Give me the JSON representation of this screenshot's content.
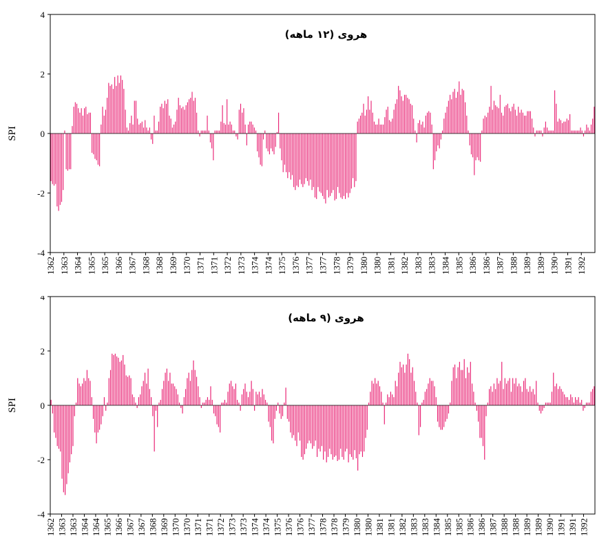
{
  "bar_color": "#E8196E",
  "chart_data": [
    {
      "type": "bar",
      "title": "هروی (۱۲ ماهه)",
      "ylabel": "SPI",
      "ylim": [
        -4,
        4
      ],
      "yticks": [
        -4,
        -2,
        0,
        2,
        4
      ],
      "xtick_labels": [
        "1362",
        "1363",
        "1364",
        "1365",
        "1365",
        "1366",
        "1367",
        "1368",
        "1368",
        "1369",
        "1370",
        "1371",
        "1371",
        "1372",
        "1373",
        "1374",
        "1374",
        "1375",
        "1376",
        "1377",
        "1377",
        "1378",
        "1379",
        "1380",
        "1380",
        "1381",
        "1382",
        "1383",
        "1383",
        "1384",
        "1385",
        "1386",
        "1386",
        "1387",
        "1388",
        "1389",
        "1389",
        "1390",
        "1391",
        "1392"
      ],
      "values": [
        -1.6,
        -1.7,
        -1.75,
        -1.7,
        -2.45,
        -2.6,
        -2.4,
        -2.3,
        -1.9,
        0.1,
        -1.2,
        -1.25,
        -1.2,
        -1.2,
        0.25,
        0.9,
        1.05,
        1.0,
        0.85,
        0.7,
        0.85,
        0.6,
        0.85,
        0.9,
        0.65,
        0.7,
        0.7,
        -0.65,
        -0.7,
        -0.85,
        -0.9,
        -1.05,
        -1.1,
        0.3,
        0.9,
        0.6,
        0.8,
        1.2,
        1.7,
        1.6,
        1.65,
        1.5,
        1.9,
        1.6,
        1.95,
        1.7,
        1.95,
        1.8,
        1.5,
        0.8,
        0.2,
        0.1,
        0.35,
        0.6,
        0.3,
        1.1,
        1.1,
        0.5,
        0.3,
        0.35,
        0.4,
        0.2,
        0.45,
        0.2,
        0.1,
        0.2,
        -0.2,
        -0.35,
        0.6,
        0.1,
        0.1,
        0.4,
        0.9,
        1.0,
        0.85,
        1.1,
        1.0,
        1.15,
        0.6,
        0.5,
        0.2,
        0.3,
        0.4,
        0.8,
        1.2,
        0.95,
        0.85,
        0.9,
        0.8,
        0.95,
        1.05,
        1.15,
        1.2,
        1.4,
        1.1,
        1.2,
        0.7,
        0.1,
        -0.1,
        0.1,
        0.1,
        0.1,
        0.1,
        0.6,
        0.1,
        -0.3,
        -0.5,
        -0.9,
        0.1,
        0.1,
        0.1,
        0.1,
        0.4,
        0.95,
        0.35,
        0.3,
        1.15,
        0.3,
        0.4,
        0.3,
        0.1,
        0.1,
        -0.1,
        -0.2,
        0.8,
        1.0,
        0.7,
        0.85,
        0.3,
        -0.4,
        0.3,
        0.4,
        0.4,
        0.3,
        0.2,
        0.1,
        -0.6,
        -0.8,
        -1.05,
        -1.1,
        -0.2,
        0.1,
        -0.5,
        -0.6,
        -0.7,
        -0.5,
        -0.6,
        -0.7,
        -0.45,
        0.05,
        0.7,
        -0.5,
        -0.9,
        -1.3,
        -1.05,
        -1.3,
        -1.5,
        -1.3,
        -1.55,
        -1.4,
        -1.8,
        -1.9,
        -1.75,
        -1.8,
        -1.55,
        -1.7,
        -1.8,
        -1.7,
        -1.5,
        -1.6,
        -1.75,
        -1.55,
        -1.9,
        -1.8,
        -2.15,
        -2.2,
        -1.8,
        -1.95,
        -2.0,
        -2.1,
        -2.2,
        -2.35,
        -1.9,
        -2.15,
        -2.1,
        -2.0,
        -1.9,
        -2.25,
        -2.2,
        -1.8,
        -2.0,
        -2.15,
        -2.2,
        -2.1,
        -2.2,
        -2.0,
        -2.15,
        -2.0,
        -1.85,
        -1.5,
        -1.8,
        -1.6,
        0.4,
        0.5,
        0.6,
        0.7,
        1.0,
        0.6,
        0.8,
        1.25,
        0.8,
        1.1,
        0.7,
        0.4,
        0.3,
        0.3,
        0.5,
        0.3,
        0.3,
        0.3,
        0.55,
        0.8,
        0.9,
        0.45,
        0.4,
        0.5,
        0.8,
        1.0,
        1.15,
        1.6,
        1.45,
        1.25,
        1.1,
        1.3,
        1.3,
        1.2,
        1.15,
        1.0,
        0.95,
        0.5,
        0.1,
        -0.3,
        0.35,
        0.45,
        0.3,
        0.4,
        0.2,
        0.6,
        0.7,
        0.75,
        0.7,
        0.3,
        -1.2,
        -0.9,
        -0.6,
        -0.4,
        -0.5,
        -0.2,
        0.1,
        0.5,
        0.7,
        0.9,
        1.1,
        1.3,
        1.15,
        1.4,
        1.5,
        1.2,
        1.4,
        1.75,
        1.3,
        1.5,
        1.45,
        1.05,
        0.6,
        0.1,
        -0.4,
        -0.7,
        -0.8,
        -1.4,
        -0.9,
        -0.8,
        -0.9,
        -0.95,
        0.1,
        0.5,
        0.6,
        0.55,
        0.7,
        0.9,
        1.6,
        0.8,
        1.1,
        0.95,
        0.9,
        0.85,
        1.3,
        0.7,
        0.6,
        0.9,
        0.95,
        1.0,
        0.85,
        0.75,
        0.9,
        1.0,
        0.8,
        0.6,
        0.9,
        0.7,
        0.8,
        0.7,
        0.6,
        0.6,
        0.75,
        0.75,
        0.75,
        0.5,
        0.2,
        -0.1,
        0.1,
        0.1,
        0.1,
        0.1,
        -0.1,
        0.2,
        0.4,
        0.2,
        0.1,
        0.1,
        0.1,
        0.1,
        1.45,
        1.0,
        0.4,
        0.5,
        0.45,
        0.35,
        0.4,
        0.4,
        0.5,
        0.45,
        0.65,
        0.1,
        0.1,
        0.1,
        0.1,
        0.1,
        0.1,
        0.2,
        0.1,
        -0.1,
        0.1,
        0.3,
        0.2,
        0.1,
        0.3,
        0.5,
        0.9
      ]
    },
    {
      "type": "bar",
      "title": "هروی (۹ ماهه)",
      "ylabel": "SPI",
      "ylim": [
        -4,
        4
      ],
      "yticks": [
        -4,
        -2,
        0,
        2,
        4
      ],
      "xtick_labels": [
        "1362",
        "1363",
        "1363",
        "1364",
        "1364",
        "1365",
        "1366",
        "1367",
        "1367",
        "1368",
        "1369",
        "1370",
        "1370",
        "1371",
        "1371",
        "1372",
        "1373",
        "1373",
        "1374",
        "1374",
        "1375",
        "1376",
        "1376",
        "1377",
        "1378",
        "1378",
        "1379",
        "1380",
        "1380",
        "1381",
        "1381",
        "1382",
        "1383",
        "1383",
        "1384",
        "1385",
        "1385",
        "1386",
        "1386",
        "1387",
        "1388",
        "1388",
        "1389",
        "1389",
        "1390",
        "1391",
        "1391",
        "1392"
      ],
      "values": [
        0.2,
        -0.3,
        -1.0,
        -1.2,
        -1.5,
        -1.6,
        -1.7,
        -2.7,
        -3.2,
        -3.3,
        -2.9,
        -2.5,
        -2.1,
        -1.8,
        -1.5,
        -0.4,
        0.1,
        1.0,
        0.8,
        0.7,
        0.8,
        1.0,
        0.9,
        1.3,
        1.0,
        0.9,
        0.3,
        -0.5,
        -1.0,
        -1.4,
        -1.0,
        -0.9,
        -0.7,
        -0.4,
        0.3,
        -0.2,
        0.1,
        1.0,
        1.3,
        1.9,
        1.85,
        1.9,
        1.8,
        1.75,
        1.6,
        1.65,
        1.85,
        1.5,
        1.1,
        1.05,
        1.1,
        1.0,
        0.4,
        0.3,
        0.1,
        -0.1,
        0.3,
        0.4,
        0.7,
        0.9,
        1.2,
        0.8,
        1.35,
        0.6,
        0.3,
        -0.4,
        -1.7,
        -0.2,
        -0.8,
        0.1,
        0.2,
        0.6,
        0.9,
        1.2,
        1.35,
        0.9,
        1.2,
        0.8,
        0.8,
        0.7,
        0.6,
        0.4,
        0.1,
        -0.1,
        -0.3,
        0.3,
        0.6,
        1.0,
        1.2,
        0.9,
        1.3,
        1.65,
        1.3,
        1.05,
        0.7,
        0.3,
        -0.1,
        0.1,
        0.1,
        0.2,
        0.3,
        0.2,
        0.7,
        0.2,
        -0.3,
        -0.4,
        -0.7,
        -0.8,
        -1.0,
        0.1,
        0.1,
        0.2,
        0.1,
        0.5,
        0.8,
        0.9,
        0.7,
        0.6,
        0.8,
        0.2,
        0.1,
        -0.2,
        0.4,
        0.6,
        0.8,
        0.5,
        0.3,
        0.5,
        0.9,
        0.6,
        -0.2,
        0.5,
        0.4,
        0.5,
        0.3,
        0.6,
        0.4,
        0.2,
        0.1,
        -0.6,
        -0.8,
        -1.3,
        -1.4,
        -0.5,
        -0.2,
        0.1,
        -0.3,
        -0.5,
        -0.4,
        0.1,
        0.65,
        -0.5,
        -0.6,
        -1.0,
        -1.2,
        -1.1,
        -1.3,
        -1.5,
        -1.0,
        -1.3,
        -1.9,
        -2.0,
        -1.8,
        -1.6,
        -1.4,
        -1.3,
        -1.4,
        -1.6,
        -1.5,
        -1.3,
        -1.9,
        -1.6,
        -1.7,
        -1.5,
        -2.0,
        -1.7,
        -2.1,
        -1.9,
        -1.6,
        -1.8,
        -2.0,
        -1.9,
        -1.85,
        -2.05,
        -2.0,
        -1.6,
        -1.9,
        -2.0,
        -1.7,
        -1.6,
        -2.1,
        -1.8,
        -1.9,
        -2.0,
        -1.65,
        -1.95,
        -2.4,
        -1.8,
        -1.7,
        -1.9,
        -1.7,
        -1.2,
        -0.9,
        0.1,
        0.5,
        0.9,
        0.8,
        1.0,
        0.8,
        0.9,
        0.7,
        0.5,
        0.1,
        -0.7,
        0.1,
        0.4,
        0.3,
        0.5,
        0.4,
        0.3,
        0.9,
        0.7,
        1.2,
        1.6,
        1.4,
        1.5,
        1.2,
        1.5,
        1.9,
        1.7,
        1.2,
        1.4,
        0.9,
        0.5,
        0.1,
        -1.1,
        -0.8,
        0.1,
        0.2,
        0.5,
        0.6,
        0.8,
        1.0,
        0.9,
        0.9,
        0.7,
        0.3,
        -0.6,
        -0.8,
        -0.9,
        -0.9,
        -0.8,
        -0.6,
        -0.5,
        -0.3,
        0.1,
        0.9,
        1.4,
        1.5,
        1.0,
        1.4,
        1.6,
        1.3,
        1.3,
        1.7,
        1.0,
        1.4,
        1.2,
        1.6,
        0.8,
        0.5,
        0.1,
        -0.2,
        -0.6,
        -1.2,
        -1.2,
        -1.5,
        -2.0,
        -0.4,
        0.1,
        0.6,
        0.7,
        0.5,
        0.8,
        0.6,
        1.0,
        0.8,
        0.9,
        1.6,
        0.6,
        1.0,
        0.8,
        0.9,
        1.0,
        0.5,
        1.0,
        0.8,
        1.0,
        0.7,
        0.8,
        0.7,
        0.5,
        0.9,
        1.0,
        0.6,
        0.5,
        0.7,
        0.5,
        0.6,
        0.4,
        0.9,
        0.1,
        -0.2,
        -0.3,
        -0.2,
        -0.1,
        0.1,
        0.1,
        0.1,
        0.1,
        0.5,
        1.2,
        0.7,
        0.8,
        0.6,
        0.7,
        0.6,
        0.5,
        0.4,
        0.3,
        0.3,
        0.2,
        0.4,
        0.3,
        0.1,
        0.3,
        0.2,
        0.3,
        0.1,
        0.2,
        -0.2,
        -0.1,
        0.1,
        0.1,
        0.1,
        0.5,
        0.6,
        0.7
      ]
    }
  ]
}
